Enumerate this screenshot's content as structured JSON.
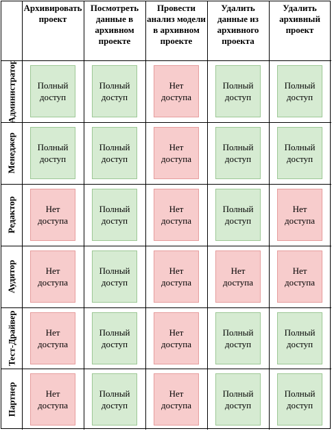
{
  "columns": [
    "Архивировать проект",
    "Посмотреть данные в архивном проекте",
    "Провести анализ модели в архивном проекте",
    "Удалить данные из архивного проекта",
    "Удалить архивный проект"
  ],
  "rows": [
    {
      "role": "Администратор",
      "cells": [
        "Полный\nдоступ",
        "Полный\nдоступ",
        "Нет\nдоступа",
        "Полный\nдоступ",
        "Полный\nдоступ"
      ]
    },
    {
      "role": "Менеджер",
      "cells": [
        "Полный\nдоступ",
        "Полный\nдоступ",
        "Нет\nдоступа",
        "Полный\nдоступ",
        "Полный\nдоступ"
      ]
    },
    {
      "role": "Редактор",
      "cells": [
        "Нет\nдоступа",
        "Полный\nдоступ",
        "Нет\nдоступа",
        "Полный\nдоступ",
        "Нет\nдоступа"
      ]
    },
    {
      "role": "Аудитор",
      "cells": [
        "Нет\nдоступа",
        "Полный\nдоступ",
        "Нет\nдоступа",
        "Нет\nдоступа",
        "Нет\nдоступа"
      ]
    },
    {
      "role": "Тест-Драйвер",
      "cells": [
        "Нет\nдоступа",
        "Полный\nдоступ",
        "Нет\nдоступа",
        "Полный\nдоступ",
        "Полный\nдоступ"
      ]
    },
    {
      "role": "Партнер",
      "cells": [
        "Нет\nдоступа",
        "Полный\nдоступ",
        "Нет\nдоступа",
        "Полный\nдоступ",
        "Полный\nдоступ"
      ]
    }
  ],
  "colors": {
    "full_access_fill": "#d6ebd2",
    "no_access_fill": "#f7cccc"
  }
}
